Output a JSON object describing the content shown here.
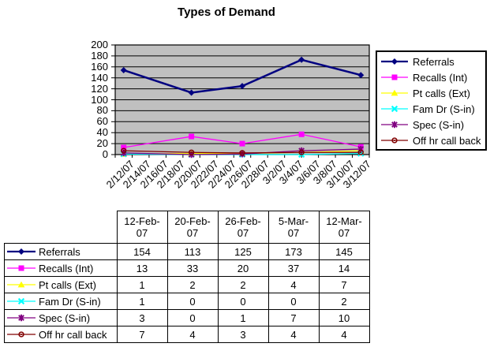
{
  "chart_data": {
    "type": "line",
    "title": "Types of Demand",
    "plot_bg_color": "#c0c0c0",
    "grid": "horizontal",
    "gridline_color": "#000000",
    "legend_position": "right",
    "ylim": [
      0,
      200
    ],
    "yticks": [
      0,
      20,
      40,
      60,
      80,
      100,
      120,
      140,
      160,
      180,
      200
    ],
    "x_tick_labels": [
      "2/12/07",
      "2/14/07",
      "2/16/07",
      "2/18/07",
      "2/20/07",
      "2/22/07",
      "2/24/07",
      "2/26/07",
      "2/28/07",
      "3/2/07",
      "3/4/07",
      "3/6/07",
      "3/8/07",
      "3/10/07",
      "3/12/07"
    ],
    "point_labels": [
      "12-Feb-07",
      "20-Feb-07",
      "26-Feb-07",
      "5-Mar-07",
      "12-Mar-07"
    ],
    "point_category_positions": [
      0,
      4,
      7,
      10.5,
      14
    ],
    "series": [
      {
        "name": "Referrals",
        "color": "#000080",
        "marker": "diamond",
        "values": [
          154,
          113,
          125,
          173,
          145
        ]
      },
      {
        "name": "Recalls (Int)",
        "color": "#ff00ff",
        "marker": "square",
        "values": [
          13,
          33,
          20,
          37,
          14
        ]
      },
      {
        "name": "Pt calls (Ext)",
        "color": "#ffff00",
        "marker": "triangle",
        "values": [
          1,
          2,
          2,
          4,
          7
        ]
      },
      {
        "name": "Fam Dr (S-in)",
        "color": "#00ffff",
        "marker": "x",
        "values": [
          1,
          0,
          0,
          0,
          2
        ]
      },
      {
        "name": "Spec (S-in)",
        "color": "#800080",
        "marker": "asterisk",
        "values": [
          3,
          0,
          1,
          7,
          10
        ]
      },
      {
        "name": "Off hr call back",
        "color": "#800000",
        "marker": "circle",
        "values": [
          7,
          4,
          3,
          4,
          4
        ]
      }
    ]
  },
  "table": {
    "corner_label": "",
    "col_headers": [
      "12-Feb-07",
      "20-Feb-07",
      "26-Feb-07",
      "5-Mar-07",
      "12-Mar-07"
    ],
    "row_labels": [
      "Referrals",
      "Recalls (Int)",
      "Pt calls (Ext)",
      "Fam Dr (S-in)",
      "Spec (S-in)",
      "Off hr call back"
    ],
    "rows": [
      [
        154,
        113,
        125,
        173,
        145
      ],
      [
        13,
        33,
        20,
        37,
        14
      ],
      [
        1,
        2,
        2,
        4,
        7
      ],
      [
        1,
        0,
        0,
        0,
        2
      ],
      [
        3,
        0,
        1,
        7,
        10
      ],
      [
        7,
        4,
        3,
        4,
        4
      ]
    ]
  }
}
